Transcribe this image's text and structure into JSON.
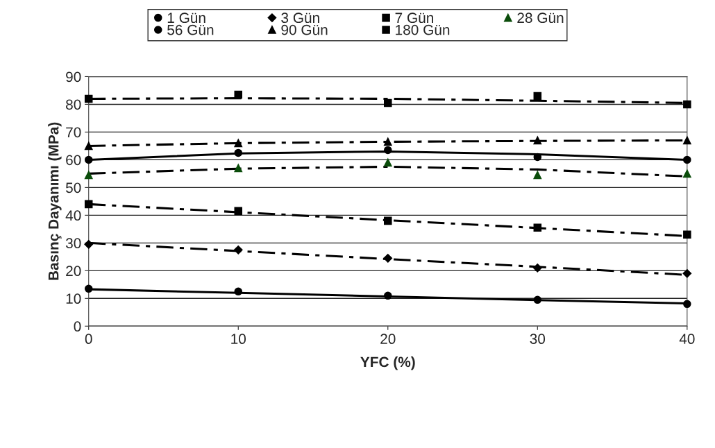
{
  "chart_data": {
    "type": "scatter",
    "xlabel": "YFC (%)",
    "ylabel": "Basınç Dayanımı (MPa)",
    "x": [
      0,
      10,
      20,
      30,
      40
    ],
    "series": [
      {
        "name": "1 Gün",
        "color": "#000000",
        "marker": "circle",
        "values": [
          13.5,
          12.5,
          11,
          9.5,
          8
        ]
      },
      {
        "name": "3 Gün",
        "color": "#000000",
        "marker": "diamond",
        "values": [
          29.5,
          27.5,
          24.5,
          21,
          19
        ]
      },
      {
        "name": "7 Gün",
        "color": "#000000",
        "marker": "square",
        "values": [
          44,
          41.5,
          38,
          35.5,
          33
        ]
      },
      {
        "name": "28 Gün",
        "color": "#0b4d0b",
        "marker": "triangle",
        "values": [
          54.5,
          57,
          59,
          54.5,
          55
        ]
      },
      {
        "name": "56 Gün",
        "color": "#000000",
        "marker": "circle",
        "values": [
          60,
          62.5,
          63.5,
          61,
          60
        ]
      },
      {
        "name": "90 Gün",
        "color": "#000000",
        "marker": "triangle",
        "values": [
          65,
          66,
          66.5,
          67,
          67
        ]
      },
      {
        "name": "180 Gün",
        "color": "#000000",
        "marker": "square",
        "values": [
          82,
          83.5,
          80.5,
          83,
          80
        ]
      },
      {
        "type": "line",
        "color": "#000000",
        "line_style": "solid",
        "values": [
          13.3,
          12,
          10.7,
          9.4,
          8.2
        ]
      },
      {
        "type": "line",
        "color": "#000000",
        "line_style": "dashed",
        "values": [
          30,
          27.1,
          24.2,
          21.4,
          18.5
        ]
      },
      {
        "type": "line",
        "color": "#000000",
        "line_style": "dashed",
        "values": [
          44,
          41.1,
          38.2,
          35.4,
          32.5
        ]
      },
      {
        "type": "line",
        "color": "#000000",
        "line_style": "dashed",
        "values": [
          55,
          56.8,
          57.5,
          56.5,
          54
        ]
      },
      {
        "type": "line",
        "color": "#000000",
        "line_style": "solid",
        "values": [
          60,
          62.3,
          63,
          62,
          60
        ]
      },
      {
        "type": "line",
        "color": "#000000",
        "line_style": "dashed",
        "values": [
          65,
          66,
          66.5,
          66.8,
          67
        ]
      },
      {
        "type": "line",
        "color": "#000000",
        "line_style": "dashed",
        "values": [
          82,
          82.2,
          82,
          81.3,
          80.5
        ]
      }
    ],
    "xlim": [
      0,
      40
    ],
    "xticks": [
      0,
      10,
      20,
      30,
      40
    ],
    "ylim": [
      0,
      90
    ],
    "yticks": [
      0,
      10,
      20,
      30,
      40,
      50,
      60,
      70,
      80,
      90
    ],
    "grid": "y",
    "legend": "top"
  }
}
